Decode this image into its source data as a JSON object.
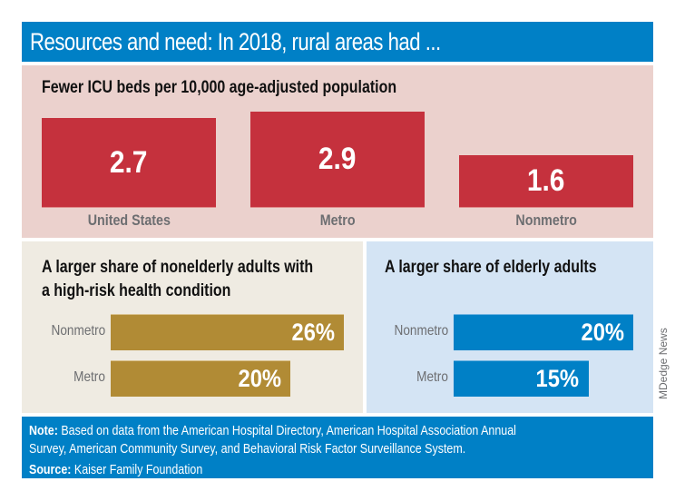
{
  "title": "Resources and need: In 2018, rural areas had ...",
  "credit": "MDedge News",
  "colors": {
    "title_bg": "#0080c6",
    "icu_panel_bg": "#ebd1cd",
    "icu_bar": "#c5313d",
    "nonelderly_panel_bg": "#efebe2",
    "nonelderly_bar": "#b18b35",
    "elderly_panel_bg": "#d4e4f4",
    "elderly_bar": "#0080c6",
    "label_gray": "#6d6e71"
  },
  "chart_data": [
    {
      "type": "bar",
      "title": "Fewer ICU beds per 10,000 age-adjusted population",
      "categories": [
        "United States",
        "Metro",
        "Nonmetro"
      ],
      "values": [
        2.7,
        2.9,
        1.6
      ],
      "value_labels": [
        "2.7",
        "2.9",
        "1.6"
      ],
      "xlabel": "",
      "ylabel": "",
      "grid": false
    },
    {
      "type": "bar",
      "orientation": "horizontal",
      "title": "A larger share of nonelderly adults with a high-risk health condition",
      "title_lines": [
        "A larger share of nonelderly adults with",
        "a high-risk health condition"
      ],
      "categories": [
        "Nonmetro",
        "Metro"
      ],
      "values": [
        26,
        20
      ],
      "value_labels": [
        "26%",
        "20%"
      ],
      "unit": "%",
      "grid": false
    },
    {
      "type": "bar",
      "orientation": "horizontal",
      "title": "A larger share of elderly adults",
      "categories": [
        "Nonmetro",
        "Metro"
      ],
      "values": [
        20,
        15
      ],
      "value_labels": [
        "20%",
        "15%"
      ],
      "unit": "%",
      "grid": false
    }
  ],
  "footer": {
    "note_label": "Note:",
    "note_line1": " Based on data from the American Hospital Directory, American Hospital Association Annual",
    "note_line2": "Survey, American Community Survey, and Behavioral Risk Factor Surveillance System.",
    "source_label": "Source:",
    "source_text": " Kaiser Family Foundation"
  }
}
